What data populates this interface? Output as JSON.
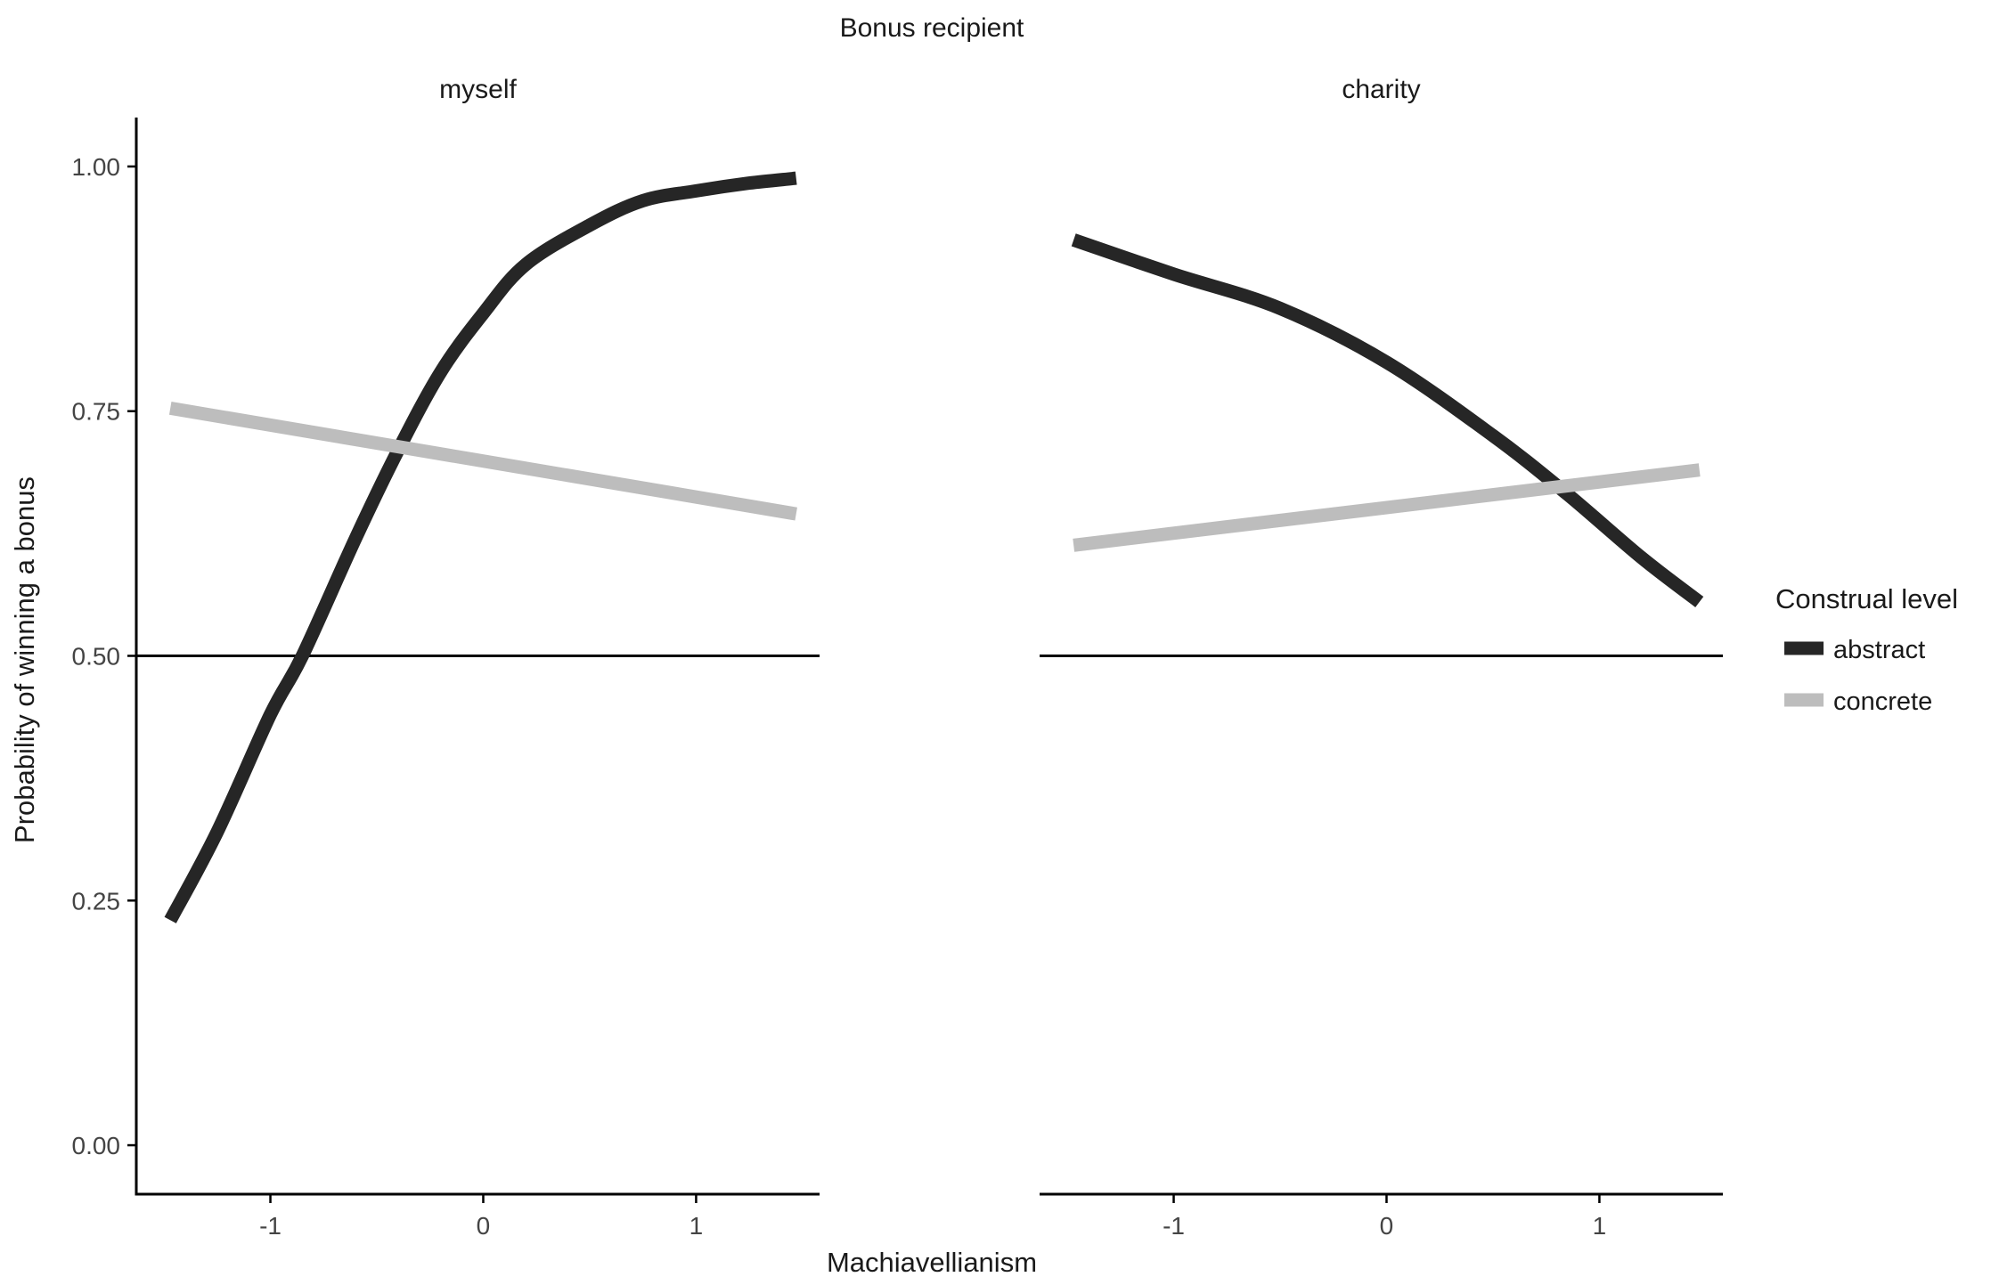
{
  "chart_data": {
    "type": "line",
    "title": "Bonus recipient",
    "xlabel": "Machiavellianism",
    "ylabel": "Probability of winning a bonus",
    "xlim": [
      -1.63,
      1.58
    ],
    "ylim": [
      -0.05,
      1.05
    ],
    "x_ticks": [
      -1,
      0,
      1
    ],
    "x_tick_labels": [
      "-1",
      "0",
      "1"
    ],
    "y_ticks": [
      0,
      0.25,
      0.5,
      0.75,
      1
    ],
    "y_tick_labels": [
      "0.00",
      "0.25",
      "0.50",
      "0.75",
      "1.00"
    ],
    "reference_line_y": 0.5,
    "grid": false,
    "legend": {
      "title": "Construal level",
      "position": "right",
      "entries": [
        {
          "label": "abstract",
          "color": "#262626"
        },
        {
          "label": "concrete",
          "color": "#bdbdbd"
        }
      ]
    },
    "panels": [
      {
        "label": "myself",
        "series": [
          {
            "name": "abstract",
            "color": "#262626",
            "x": [
              -1.47,
              -1.25,
              -1.0,
              -0.85,
              -0.6,
              -0.4,
              -0.2,
              0.0,
              0.2,
              0.5,
              0.75,
              1.0,
              1.25,
              1.47
            ],
            "y": [
              0.23,
              0.32,
              0.44,
              0.5,
              0.62,
              0.71,
              0.79,
              0.85,
              0.9,
              0.94,
              0.965,
              0.975,
              0.983,
              0.988
            ]
          },
          {
            "name": "concrete",
            "color": "#bdbdbd",
            "x": [
              -1.47,
              1.47
            ],
            "y": [
              0.753,
              0.645
            ]
          }
        ]
      },
      {
        "label": "charity",
        "series": [
          {
            "name": "abstract",
            "color": "#262626",
            "x": [
              -1.47,
              -1.0,
              -0.5,
              0.0,
              0.5,
              0.85,
              1.2,
              1.47
            ],
            "y": [
              0.925,
              0.89,
              0.855,
              0.8,
              0.725,
              0.665,
              0.6,
              0.555
            ]
          },
          {
            "name": "concrete",
            "color": "#bdbdbd",
            "x": [
              -1.47,
              1.47
            ],
            "y": [
              0.613,
              0.69
            ]
          }
        ]
      }
    ]
  }
}
